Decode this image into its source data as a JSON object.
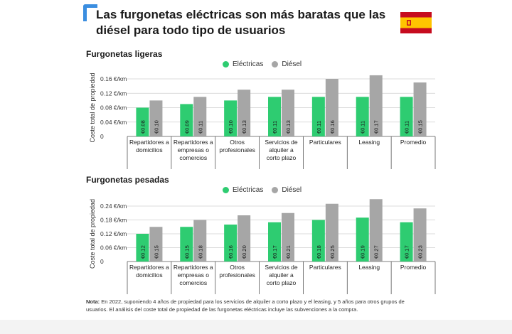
{
  "page": {
    "title": "Las furgonetas eléctricas son más baratas que las diésel para todo tipo de usuarios",
    "note_label": "Nota:",
    "note_text": "En 2022, suponiendo 4 años de propiedad para los servicios de alquiler a corto plazo y el leasing, y 5 años para otros grupos de usuarios. El análisis del coste total de propiedad de las furgonetas eléctricas incluye las subvenciones a la compra.",
    "flag_icon": "spain-flag-icon",
    "colors": {
      "electric": "#2ecc71",
      "diesel": "#a6a6a6",
      "accent": "#3b8ee0",
      "flag_red": "#c60b1e",
      "flag_yellow": "#ffc400"
    }
  },
  "chart_data": [
    {
      "type": "bar",
      "title": "Furgonetas ligeras",
      "ylabel": "Coste total de propiedad",
      "ylim": [
        0,
        0.16
      ],
      "yticks": [
        0,
        0.04,
        0.08,
        0.12,
        0.16
      ],
      "ytick_labels": [
        "0",
        "0.04 €/km",
        "0.08 €/km",
        "0.12 €/km",
        "0.16 €/km"
      ],
      "grid": true,
      "legend": "top-center",
      "categories": [
        [
          "Repartidores a",
          "domicilios"
        ],
        [
          "Repartidores a",
          "empresas o",
          "comercios"
        ],
        [
          "Otros",
          "profesionales"
        ],
        [
          "Servicios de",
          "alquiler a",
          "corto plazo"
        ],
        [
          "Particulares"
        ],
        [
          "Leasing"
        ],
        [
          "Promedio"
        ]
      ],
      "series": [
        {
          "name": "Eléctricas",
          "color": "#2ecc71",
          "values": [
            0.08,
            0.09,
            0.1,
            0.11,
            0.11,
            0.11,
            0.11
          ],
          "labels": [
            "€0.08",
            "€0.09",
            "€0.10",
            "€0.11",
            "€0.11",
            "€0.11",
            "€0.11"
          ]
        },
        {
          "name": "Diésel",
          "color": "#a6a6a6",
          "values": [
            0.1,
            0.11,
            0.13,
            0.13,
            0.16,
            0.17,
            0.15
          ],
          "labels": [
            "€0.10",
            "€0.11",
            "€0.13",
            "€0.13",
            "€0.16",
            "€0.17",
            "€0.15"
          ]
        }
      ]
    },
    {
      "type": "bar",
      "title": "Furgonetas pesadas",
      "ylabel": "Coste total de propiedad",
      "ylim": [
        0,
        0.24
      ],
      "yticks": [
        0,
        0.06,
        0.12,
        0.18,
        0.24
      ],
      "ytick_labels": [
        "0",
        "0.06 €/km",
        "0.12 €/km",
        "0.18 €/km",
        "0.24 €/km"
      ],
      "grid": true,
      "legend": "top-center",
      "categories": [
        [
          "Repartidores a",
          "domicilios"
        ],
        [
          "Repartidores a",
          "empresas o",
          "comercios"
        ],
        [
          "Otros",
          "profesionales"
        ],
        [
          "Servicios de",
          "alquiler a",
          "corto plazo"
        ],
        [
          "Particulares"
        ],
        [
          "Leasing"
        ],
        [
          "Promedio"
        ]
      ],
      "series": [
        {
          "name": "Eléctricas",
          "color": "#2ecc71",
          "values": [
            0.12,
            0.15,
            0.16,
            0.17,
            0.18,
            0.19,
            0.17
          ],
          "labels": [
            "€0.12",
            "€0.15",
            "€0.16",
            "€0.17",
            "€0.18",
            "€0.19",
            "€0.17"
          ]
        },
        {
          "name": "Diésel",
          "color": "#a6a6a6",
          "values": [
            0.15,
            0.18,
            0.2,
            0.21,
            0.25,
            0.27,
            0.23
          ],
          "labels": [
            "€0.15",
            "€0.18",
            "€0.20",
            "€0.21",
            "€0.25",
            "€0.27",
            "€0.23"
          ]
        }
      ]
    }
  ]
}
